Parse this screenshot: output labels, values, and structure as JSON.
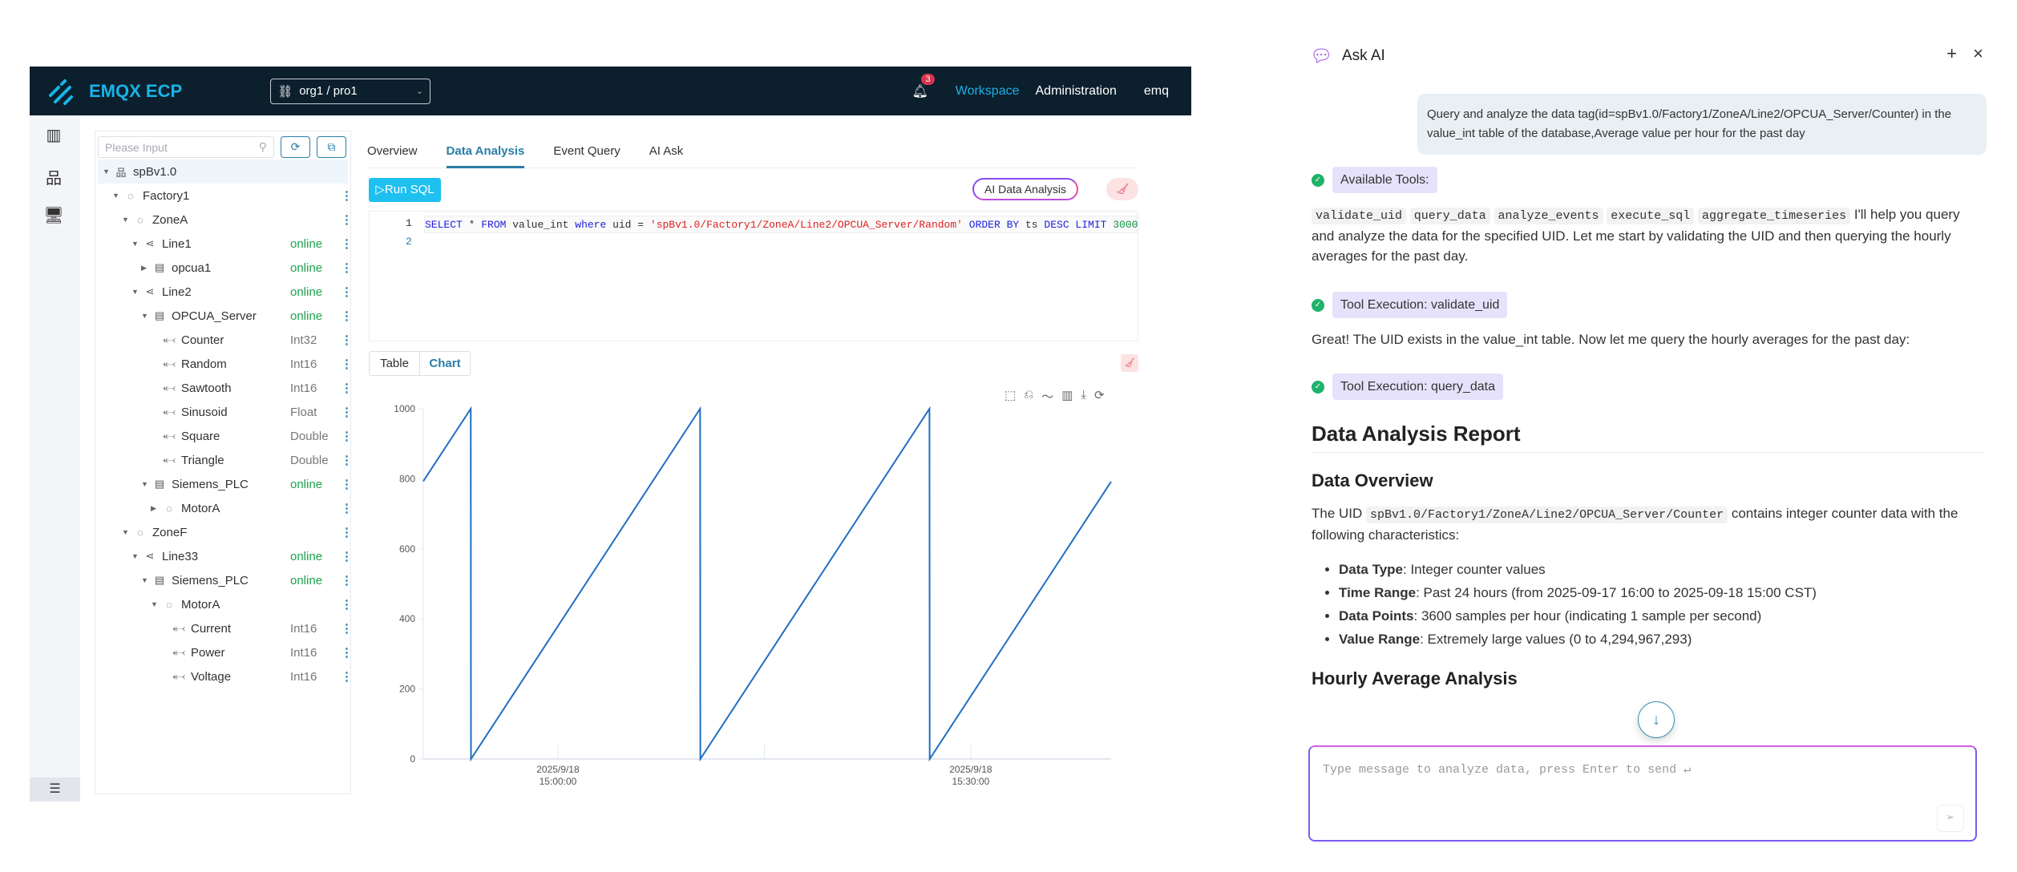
{
  "header": {
    "brand": "EMQX ECP",
    "org_selector": "org1 / pro1",
    "notification_count": "3",
    "nav": [
      "Workspace",
      "Administration"
    ],
    "user": "emq",
    "colors": {
      "bg": "#0b1f2d",
      "accent": "#18b4e8"
    }
  },
  "rail": {
    "icons": [
      "dashboard-icon",
      "topology-icon",
      "monitor-icon"
    ],
    "collapse_icon": "menu-collapse-icon"
  },
  "tree": {
    "search_placeholder": "Please Input",
    "nodes": [
      {
        "label": "spBv1.0",
        "level": 0,
        "type": "root",
        "expanded": true,
        "status": ""
      },
      {
        "label": "Factory1",
        "level": 1,
        "type": "group",
        "expanded": true,
        "status": ""
      },
      {
        "label": "ZoneA",
        "level": 2,
        "type": "group",
        "expanded": true,
        "status": ""
      },
      {
        "label": "Line1",
        "level": 3,
        "type": "line",
        "expanded": true,
        "status": "online"
      },
      {
        "label": "opcua1",
        "level": 4,
        "type": "device",
        "expanded": false,
        "status": "online"
      },
      {
        "label": "Line2",
        "level": 3,
        "type": "line",
        "expanded": true,
        "status": "online"
      },
      {
        "label": "OPCUA_Server",
        "level": 4,
        "type": "device",
        "expanded": true,
        "status": "online"
      },
      {
        "label": "Counter",
        "level": 5,
        "type": "tag",
        "status": "Int32"
      },
      {
        "label": "Random",
        "level": 5,
        "type": "tag",
        "status": "Int16"
      },
      {
        "label": "Sawtooth",
        "level": 5,
        "type": "tag",
        "status": "Int16"
      },
      {
        "label": "Sinusoid",
        "level": 5,
        "type": "tag",
        "status": "Float"
      },
      {
        "label": "Square",
        "level": 5,
        "type": "tag",
        "status": "Double"
      },
      {
        "label": "Triangle",
        "level": 5,
        "type": "tag",
        "status": "Double"
      },
      {
        "label": "Siemens_PLC",
        "level": 4,
        "type": "device",
        "expanded": true,
        "status": "online"
      },
      {
        "label": "MotorA",
        "level": 5,
        "type": "group",
        "expanded": false,
        "status": ""
      },
      {
        "label": "ZoneF",
        "level": 2,
        "type": "group",
        "expanded": true,
        "status": ""
      },
      {
        "label": "Line33",
        "level": 3,
        "type": "line",
        "expanded": true,
        "status": "online"
      },
      {
        "label": "Siemens_PLC",
        "level": 4,
        "type": "device",
        "expanded": true,
        "status": "online"
      },
      {
        "label": "MotorA",
        "level": 5,
        "type": "group",
        "expanded": true,
        "status": ""
      },
      {
        "label": "Current",
        "level": 6,
        "type": "tag",
        "status": "Int16"
      },
      {
        "label": "Power",
        "level": 6,
        "type": "tag",
        "status": "Int16"
      },
      {
        "label": "Voltage",
        "level": 6,
        "type": "tag",
        "status": "Int16"
      }
    ]
  },
  "main": {
    "tabs": [
      "Overview",
      "Data Analysis",
      "Event Query",
      "AI Ask"
    ],
    "active_tab": "Data Analysis",
    "run_sql": "▷Run SQL",
    "ai_data_analysis": "AI Data Analysis",
    "editor": {
      "line_numbers": [
        "1",
        "2"
      ],
      "tokens": [
        {
          "t": "SELECT",
          "c": "kw"
        },
        {
          "t": " * ",
          "c": ""
        },
        {
          "t": "FROM",
          "c": "kw"
        },
        {
          "t": " value_int ",
          "c": ""
        },
        {
          "t": "where",
          "c": "kw"
        },
        {
          "t": " uid = ",
          "c": ""
        },
        {
          "t": "'spBv1.0/Factory1/ZoneA/Line2/OPCUA_Server/Random'",
          "c": "str"
        },
        {
          "t": " ",
          "c": ""
        },
        {
          "t": "ORDER BY",
          "c": "kw"
        },
        {
          "t": " ts ",
          "c": ""
        },
        {
          "t": "DESC LIMIT",
          "c": "kw"
        },
        {
          "t": " ",
          "c": ""
        },
        {
          "t": "3000",
          "c": "num"
        }
      ]
    },
    "view_toggle": [
      "Table",
      "Chart"
    ],
    "active_view": "Chart",
    "chart_tools": [
      "zoom-icon",
      "zoom-reset-icon",
      "line-chart-icon",
      "bar-chart-icon",
      "download-icon",
      "restore-icon"
    ]
  },
  "chart_data": {
    "type": "line",
    "title": "",
    "xlabel": "",
    "ylabel": "",
    "ylim": [
      0,
      1000
    ],
    "yticks": [
      0,
      200,
      400,
      600,
      800,
      1000
    ],
    "xlim": [
      "2025-09-18 14:50:13",
      "2025-09-18 15:40:12"
    ],
    "xticks": [
      {
        "t": "2025-09-18 15:00:00",
        "label": [
          "2025/9/18",
          "15:00:00"
        ]
      },
      {
        "t": "2025-09-18 15:15:00",
        "label": [
          "",
          ""
        ]
      },
      {
        "t": "2025-09-18 15:30:00",
        "label": [
          "2025/9/18",
          "15:30:00"
        ]
      }
    ],
    "grid": false,
    "color": "#1f6fc0",
    "points": [
      [
        "2025-09-18 14:50:13",
        793
      ],
      [
        "2025-09-18 14:53:40",
        1000
      ],
      [
        "2025-09-18 14:53:41",
        0
      ],
      [
        "2025-09-18 15:10:20",
        1000
      ],
      [
        "2025-09-18 15:10:21",
        0
      ],
      [
        "2025-09-18 15:27:00",
        1000
      ],
      [
        "2025-09-18 15:27:01",
        0
      ],
      [
        "2025-09-18 15:40:12",
        792
      ]
    ]
  },
  "chat": {
    "title": "Ask AI",
    "user_message": "Query and analyze the data tag(id=spBv1.0/Factory1/ZoneA/Line2/OPCUA_Server/Counter) in the value_int table of the database,Average value per hour for the past day",
    "available_tools_label": "Available Tools:",
    "tools": [
      "validate_uid",
      "query_data",
      "analyze_events",
      "execute_sql",
      "aggregate_timeseries"
    ],
    "intro": "I'll help you query and analyze the data for the specified UID. Let me start by validating the UID and then querying the hourly averages for the past day.",
    "exec1": "Tool Execution: validate_uid",
    "msg2": "Great! The UID exists in the value_int table. Now let me query the hourly averages for the past day:",
    "exec2": "Tool Execution: query_data",
    "report_title": "Data Analysis Report",
    "overview_title": "Data Overview",
    "overview_pre": "The UID ",
    "overview_uid": "spBv1.0/Factory1/ZoneA/Line2/OPCUA_Server/Counter",
    "overview_post": " contains integer counter data with the following characteristics:",
    "bullets": [
      {
        "k": "Data Type",
        "v": ": Integer counter values"
      },
      {
        "k": "Time Range",
        "v": ": Past 24 hours (from 2025-09-17 16:00 to 2025-09-18 15:00 CST)"
      },
      {
        "k": "Data Points",
        "v": ": 3600 samples per hour (indicating 1 sample per second)"
      },
      {
        "k": "Value Range",
        "v": ": Extremely large values (0 to 4,294,967,293)"
      }
    ],
    "hourly_title": "Hourly Average Analysis",
    "input_placeholder": "Type message to analyze data, press Enter to send ↵"
  }
}
